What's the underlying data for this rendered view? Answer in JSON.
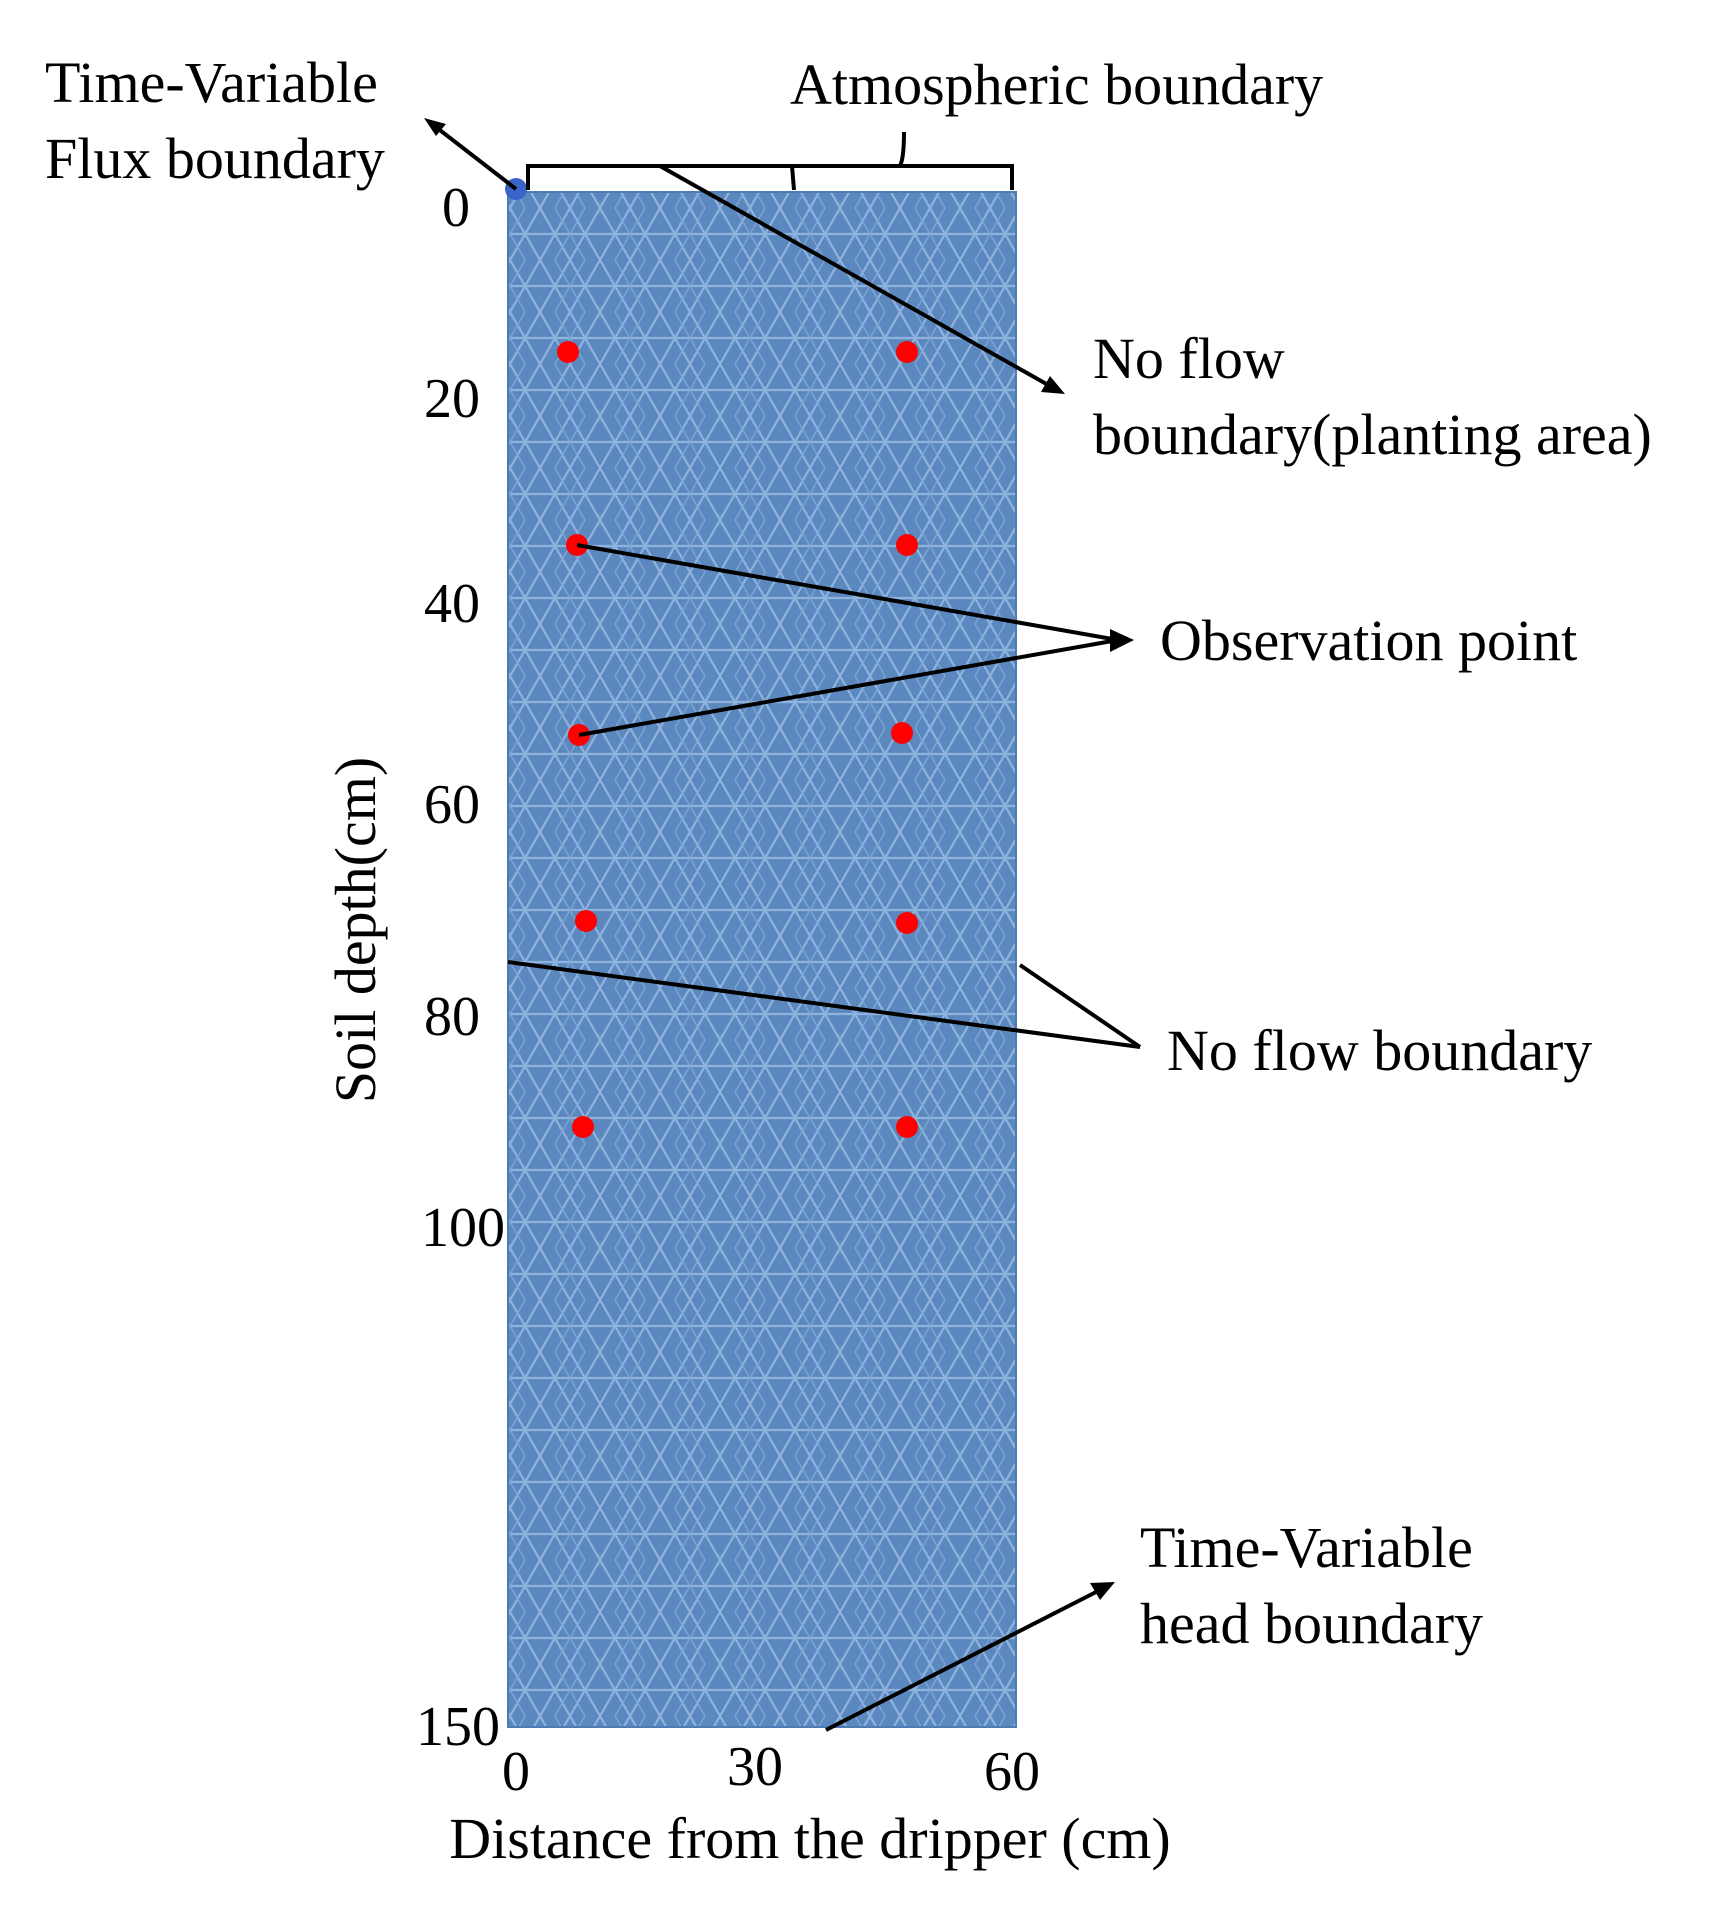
{
  "labels": {
    "flux_boundary": [
      "Time-Variable",
      "Flux boundary"
    ],
    "atmospheric_boundary": "Atmospheric boundary",
    "no_flow_planting": [
      "No flow",
      "boundary(planting area)"
    ],
    "observation_point": "Observation point",
    "no_flow_boundary": "No flow boundary",
    "head_boundary": [
      "Time-Variable",
      "head boundary"
    ]
  },
  "axes": {
    "y_label": "Soil depth(cm)",
    "y_ticks": [
      "0",
      "20",
      "40",
      "60",
      "80",
      "100",
      "150"
    ],
    "x_label": "Distance from the dripper (cm)",
    "x_ticks": [
      "0",
      "30",
      "60"
    ]
  },
  "colors": {
    "domain_fill": "#5b88bf",
    "mesh": "#8fb3dc",
    "observation": "#ff0000",
    "flux_point": "#3b64c8"
  }
}
